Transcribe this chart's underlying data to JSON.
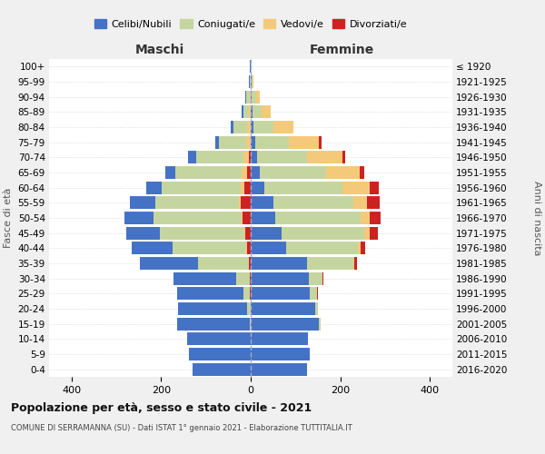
{
  "age_groups": [
    "0-4",
    "5-9",
    "10-14",
    "15-19",
    "20-24",
    "25-29",
    "30-34",
    "35-39",
    "40-44",
    "45-49",
    "50-54",
    "55-59",
    "60-64",
    "65-69",
    "70-74",
    "75-79",
    "80-84",
    "85-89",
    "90-94",
    "95-99",
    "100+"
  ],
  "birth_years": [
    "2016-2020",
    "2011-2015",
    "2006-2010",
    "2001-2005",
    "1996-2000",
    "1991-1995",
    "1986-1990",
    "1981-1985",
    "1976-1980",
    "1971-1975",
    "1966-1970",
    "1961-1965",
    "1956-1960",
    "1951-1955",
    "1946-1950",
    "1941-1945",
    "1936-1940",
    "1931-1935",
    "1926-1930",
    "1921-1925",
    "≤ 1920"
  ],
  "maschi": {
    "celibi": [
      130,
      138,
      142,
      162,
      155,
      148,
      140,
      130,
      90,
      75,
      65,
      58,
      35,
      22,
      18,
      10,
      6,
      4,
      3,
      2,
      1
    ],
    "coniugati": [
      0,
      0,
      0,
      3,
      8,
      15,
      30,
      112,
      165,
      188,
      195,
      185,
      175,
      148,
      105,
      60,
      30,
      12,
      8,
      2,
      1
    ],
    "vedovi": [
      0,
      0,
      0,
      0,
      0,
      0,
      0,
      0,
      2,
      2,
      3,
      5,
      8,
      12,
      12,
      10,
      8,
      4,
      2,
      0,
      0
    ],
    "divorziati": [
      0,
      0,
      0,
      0,
      0,
      2,
      2,
      5,
      8,
      12,
      18,
      22,
      15,
      8,
      5,
      0,
      0,
      0,
      0,
      0,
      0
    ]
  },
  "femmine": {
    "nubili": [
      125,
      132,
      128,
      153,
      143,
      132,
      130,
      125,
      80,
      68,
      55,
      50,
      30,
      20,
      15,
      10,
      6,
      4,
      3,
      2,
      1
    ],
    "coniugate": [
      0,
      0,
      0,
      3,
      8,
      15,
      30,
      105,
      160,
      185,
      190,
      180,
      175,
      148,
      110,
      75,
      45,
      20,
      10,
      3,
      1
    ],
    "vedove": [
      0,
      0,
      0,
      0,
      0,
      0,
      0,
      2,
      5,
      12,
      20,
      30,
      60,
      75,
      80,
      68,
      45,
      20,
      8,
      2,
      0
    ],
    "divorziate": [
      0,
      0,
      0,
      0,
      0,
      2,
      2,
      5,
      10,
      18,
      25,
      28,
      20,
      10,
      5,
      5,
      0,
      0,
      0,
      0,
      0
    ]
  },
  "colors": {
    "celibi_nubili": "#4472c4",
    "coniugati_e": "#c5d5a0",
    "vedovi_e": "#f5c97a",
    "divorziati_e": "#cc2222"
  },
  "title": "Popolazione per età, sesso e stato civile - 2021",
  "subtitle": "COMUNE DI SERRAMANNA (SU) - Dati ISTAT 1° gennaio 2021 - Elaborazione TUTTITALIA.IT",
  "xlabel_left": "Maschi",
  "xlabel_right": "Femmine",
  "ylabel_left": "Fasce di età",
  "ylabel_right": "Anni di nascita",
  "xlim": 450,
  "legend_labels": [
    "Celibi/Nubili",
    "Coniugati/e",
    "Vedovi/e",
    "Divorziati/e"
  ],
  "bg_color": "#f0f0f0",
  "plot_bg": "#ffffff",
  "grid_color": "#cccccc"
}
